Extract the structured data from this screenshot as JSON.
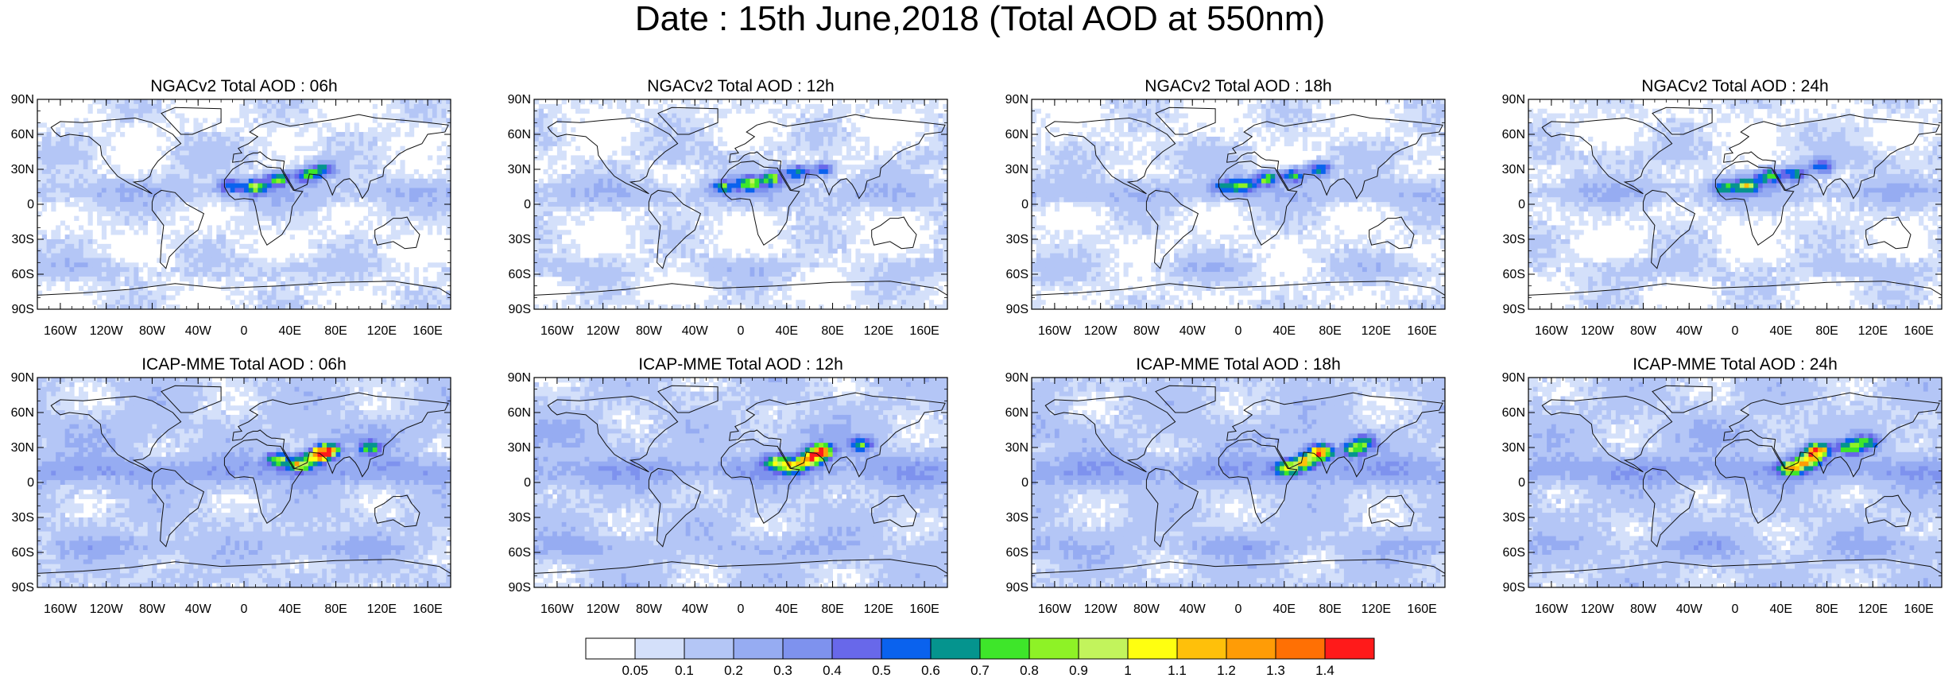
{
  "figure": {
    "title": "Date : 15th June,2018 (Total AOD at 550nm)"
  },
  "panels": [
    {
      "title": "NGACv2 Total AOD : 06h",
      "model": "NGACv2",
      "hour": "06h",
      "plumes": [
        [
          10,
          15,
          0.8
        ],
        [
          30,
          22,
          0.75
        ],
        [
          55,
          25,
          0.7
        ],
        [
          70,
          30,
          0.6
        ],
        [
          -12,
          16,
          0.55
        ]
      ]
    },
    {
      "title": "NGACv2 Total AOD : 12h",
      "model": "NGACv2",
      "hour": "12h",
      "plumes": [
        [
          8,
          18,
          0.8
        ],
        [
          28,
          22,
          0.75
        ],
        [
          50,
          27,
          0.7
        ],
        [
          72,
          30,
          0.6
        ],
        [
          -15,
          15,
          0.55
        ]
      ]
    },
    {
      "title": "NGACv2 Total AOD : 18h",
      "model": "NGACv2",
      "hour": "18h",
      "plumes": [
        [
          5,
          16,
          0.75
        ],
        [
          25,
          22,
          0.8
        ],
        [
          48,
          25,
          0.7
        ],
        [
          70,
          30,
          0.65
        ],
        [
          -12,
          15,
          0.55
        ]
      ]
    },
    {
      "title": "NGACv2 Total AOD : 24h",
      "model": "NGACv2",
      "hour": "24h",
      "plumes": [
        [
          10,
          16,
          0.8
        ],
        [
          30,
          24,
          0.75
        ],
        [
          52,
          26,
          0.7
        ],
        [
          75,
          32,
          0.6
        ],
        [
          -10,
          14,
          0.55
        ]
      ]
    },
    {
      "title": "ICAP-MME Total AOD : 06h",
      "model": "ICAP-MME",
      "hour": "06h",
      "plumes": [
        [
          72,
          27,
          1.45
        ],
        [
          62,
          22,
          1.1
        ],
        [
          48,
          15,
          0.9
        ],
        [
          30,
          20,
          0.75
        ],
        [
          110,
          30,
          0.6
        ]
      ]
    },
    {
      "title": "ICAP-MME Total AOD : 12h",
      "model": "ICAP-MME",
      "hour": "12h",
      "plumes": [
        [
          70,
          27,
          1.45
        ],
        [
          60,
          20,
          1.05
        ],
        [
          45,
          14,
          0.9
        ],
        [
          30,
          18,
          0.7
        ],
        [
          105,
          32,
          0.6
        ]
      ]
    },
    {
      "title": "ICAP-MME Total AOD : 18h",
      "model": "ICAP-MME",
      "hour": "18h",
      "plumes": [
        [
          72,
          26,
          1.45
        ],
        [
          58,
          18,
          1.0
        ],
        [
          42,
          12,
          0.85
        ],
        [
          100,
          28,
          0.75
        ],
        [
          110,
          35,
          0.6
        ]
      ]
    },
    {
      "title": "ICAP-MME Total AOD : 24h",
      "model": "ICAP-MME",
      "hour": "24h",
      "plumes": [
        [
          72,
          27,
          1.45
        ],
        [
          62,
          18,
          1.1
        ],
        [
          48,
          12,
          0.9
        ],
        [
          100,
          30,
          0.8
        ],
        [
          115,
          35,
          0.65
        ]
      ]
    }
  ],
  "axes": {
    "lon_ticks": [
      "160W",
      "120W",
      "80W",
      "40W",
      "0",
      "40E",
      "80E",
      "120E",
      "160E"
    ],
    "lon_values": [
      -160,
      -120,
      -80,
      -40,
      0,
      40,
      80,
      120,
      160
    ],
    "lat_ticks": [
      "90N",
      "60N",
      "30N",
      "0",
      "30S",
      "60S",
      "90S"
    ],
    "lat_values": [
      90,
      60,
      30,
      0,
      -30,
      -60,
      -90
    ],
    "lon_range": [
      -180,
      180
    ],
    "lat_range": [
      -90,
      90
    ]
  },
  "colorbar": {
    "labels": [
      "0.05",
      "0.1",
      "0.2",
      "0.3",
      "0.4",
      "0.5",
      "0.6",
      "0.7",
      "0.8",
      "0.9",
      "1",
      "1.1",
      "1.2",
      "1.3",
      "1.4"
    ],
    "levels": [
      0.05,
      0.1,
      0.2,
      0.3,
      0.4,
      0.5,
      0.6,
      0.7,
      0.8,
      0.9,
      1.0,
      1.1,
      1.2,
      1.3,
      1.4
    ],
    "colors": [
      "#ffffff",
      "#d4e0fa",
      "#b4c6f6",
      "#96acf2",
      "#7e92ee",
      "#6868ea",
      "#0a62ee",
      "#05948e",
      "#3ee62a",
      "#8ef226",
      "#c2f45c",
      "#ffff10",
      "#ffc00a",
      "#ff9c06",
      "#ff7004",
      "#ff1a1a"
    ]
  }
}
